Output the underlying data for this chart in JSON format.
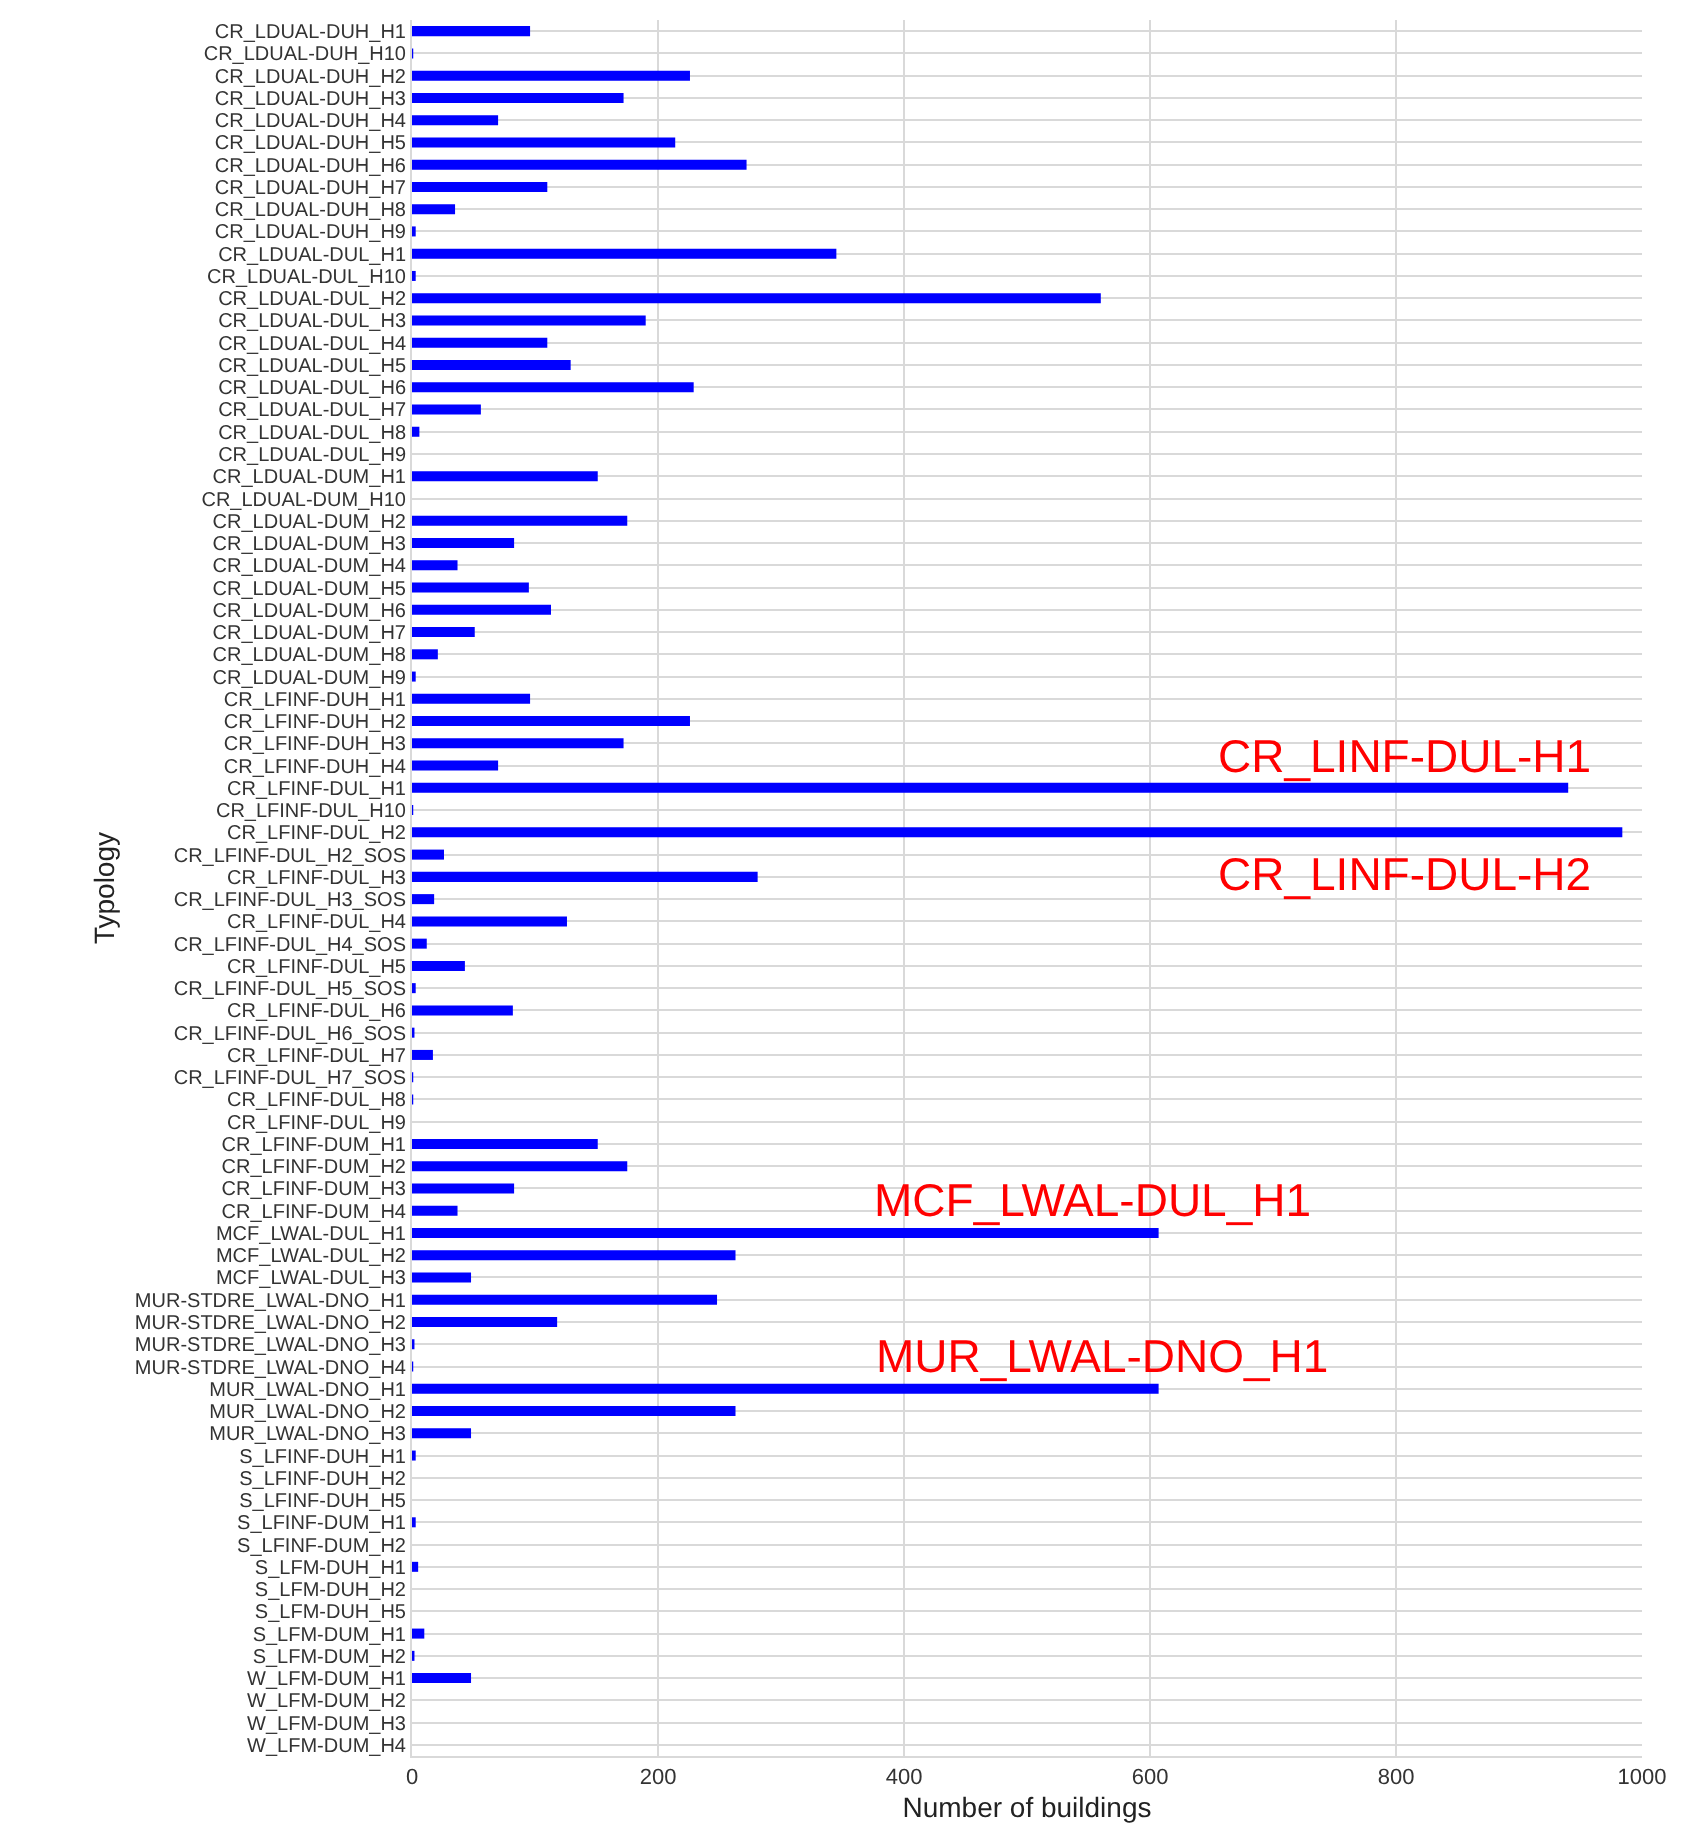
{
  "chart_data": {
    "type": "bar",
    "orientation": "horizontal",
    "xlabel": "Number of buildings",
    "ylabel": "Typology",
    "categories": [
      "CR_LDUAL-DUH_H1",
      "CR_LDUAL-DUH_H10",
      "CR_LDUAL-DUH_H2",
      "CR_LDUAL-DUH_H3",
      "CR_LDUAL-DUH_H4",
      "CR_LDUAL-DUH_H5",
      "CR_LDUAL-DUH_H6",
      "CR_LDUAL-DUH_H7",
      "CR_LDUAL-DUH_H8",
      "CR_LDUAL-DUH_H9",
      "CR_LDUAL-DUL_H1",
      "CR_LDUAL-DUL_H10",
      "CR_LDUAL-DUL_H2",
      "CR_LDUAL-DUL_H3",
      "CR_LDUAL-DUL_H4",
      "CR_LDUAL-DUL_H5",
      "CR_LDUAL-DUL_H6",
      "CR_LDUAL-DUL_H7",
      "CR_LDUAL-DUL_H8",
      "CR_LDUAL-DUL_H9",
      "CR_LDUAL-DUM_H1",
      "CR_LDUAL-DUM_H10",
      "CR_LDUAL-DUM_H2",
      "CR_LDUAL-DUM_H3",
      "CR_LDUAL-DUM_H4",
      "CR_LDUAL-DUM_H5",
      "CR_LDUAL-DUM_H6",
      "CR_LDUAL-DUM_H7",
      "CR_LDUAL-DUM_H8",
      "CR_LDUAL-DUM_H9",
      "CR_LFINF-DUH_H1",
      "CR_LFINF-DUH_H2",
      "CR_LFINF-DUH_H3",
      "CR_LFINF-DUH_H4",
      "CR_LFINF-DUL_H1",
      "CR_LFINF-DUL_H10",
      "CR_LFINF-DUL_H2",
      "CR_LFINF-DUL_H2_SOS",
      "CR_LFINF-DUL_H3",
      "CR_LFINF-DUL_H3_SOS",
      "CR_LFINF-DUL_H4",
      "CR_LFINF-DUL_H4_SOS",
      "CR_LFINF-DUL_H5",
      "CR_LFINF-DUL_H5_SOS",
      "CR_LFINF-DUL_H6",
      "CR_LFINF-DUL_H6_SOS",
      "CR_LFINF-DUL_H7",
      "CR_LFINF-DUL_H7_SOS",
      "CR_LFINF-DUL_H8",
      "CR_LFINF-DUL_H9",
      "CR_LFINF-DUM_H1",
      "CR_LFINF-DUM_H2",
      "CR_LFINF-DUM_H3",
      "CR_LFINF-DUM_H4",
      "MCF_LWAL-DUL_H1",
      "MCF_LWAL-DUL_H2",
      "MCF_LWAL-DUL_H3",
      "MUR-STDRE_LWAL-DNO_H1",
      "MUR-STDRE_LWAL-DNO_H2",
      "MUR-STDRE_LWAL-DNO_H3",
      "MUR-STDRE_LWAL-DNO_H4",
      "MUR_LWAL-DNO_H1",
      "MUR_LWAL-DNO_H2",
      "MUR_LWAL-DNO_H3",
      "S_LFINF-DUH_H1",
      "S_LFINF-DUH_H2",
      "S_LFINF-DUH_H5",
      "S_LFINF-DUM_H1",
      "S_LFINF-DUM_H2",
      "S_LFM-DUH_H1",
      "S_LFM-DUH_H2",
      "S_LFM-DUH_H5",
      "S_LFM-DUM_H1",
      "S_LFM-DUM_H2",
      "W_LFM-DUM_H1",
      "W_LFM-DUM_H2",
      "W_LFM-DUM_H3",
      "W_LFM-DUM_H4"
    ],
    "values": [
      96,
      1,
      226,
      172,
      70,
      214,
      272,
      110,
      35,
      3,
      345,
      3,
      560,
      190,
      110,
      129,
      229,
      56,
      6,
      0,
      151,
      0,
      175,
      83,
      37,
      95,
      113,
      51,
      21,
      3,
      96,
      226,
      172,
      70,
      940,
      1,
      984,
      26,
      281,
      18,
      126,
      12,
      43,
      3,
      82,
      2,
      17,
      1,
      1,
      0,
      151,
      175,
      83,
      37,
      607,
      263,
      48,
      248,
      118,
      2,
      1,
      607,
      263,
      48,
      3,
      0,
      0,
      3,
      0,
      5,
      0,
      0,
      10,
      2,
      48,
      0,
      0,
      0
    ],
    "color": "#0000ff",
    "xlim": [
      0,
      1000
    ],
    "xticks": [
      0,
      200,
      400,
      600,
      800,
      1000
    ],
    "grid": true,
    "legend": false,
    "annotations": [
      {
        "text": "CR_LINF-DUL-H1",
        "x": 808,
        "y": "CR_LFINF-DUL_H1"
      },
      {
        "text": "CR_LINF-DUL-H2",
        "x": 808,
        "y": "CR_LFINF-DUL_H2"
      },
      {
        "text": "MCF_LWAL-DUL_H1",
        "x": 553,
        "y": "MCF_LWAL-DUL_H1"
      },
      {
        "text": "MUR_LWAL-DNO_H1",
        "x": 561,
        "y": "MUR_LWAL-DNO_H1"
      }
    ]
  }
}
